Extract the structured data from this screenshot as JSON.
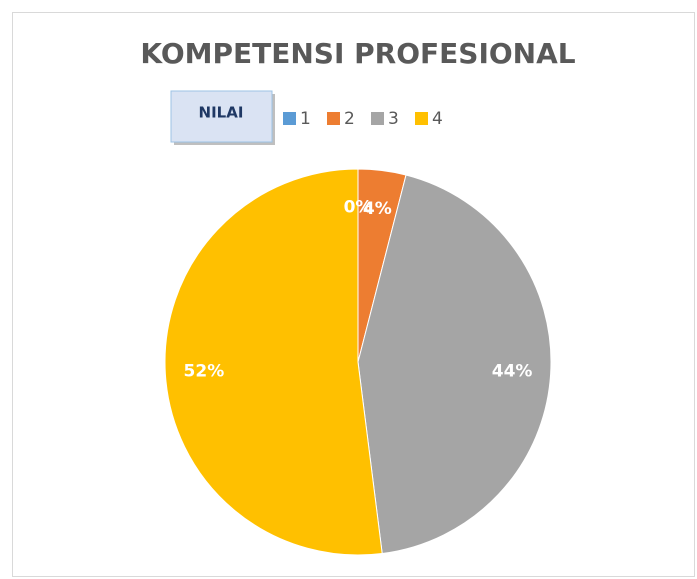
{
  "chart_data": {
    "type": "pie",
    "title": "KOMPETENSI PROFESIONAL",
    "legend_title": "NILAI",
    "categories": [
      "1",
      "2",
      "3",
      "4"
    ],
    "values": [
      0,
      4,
      44,
      52
    ],
    "value_labels": [
      "0%",
      "4%",
      "44%",
      "52%"
    ],
    "colors": [
      "#5b9bd5",
      "#ed7d31",
      "#a5a5a5",
      "#ffc000"
    ],
    "legend": "top"
  }
}
